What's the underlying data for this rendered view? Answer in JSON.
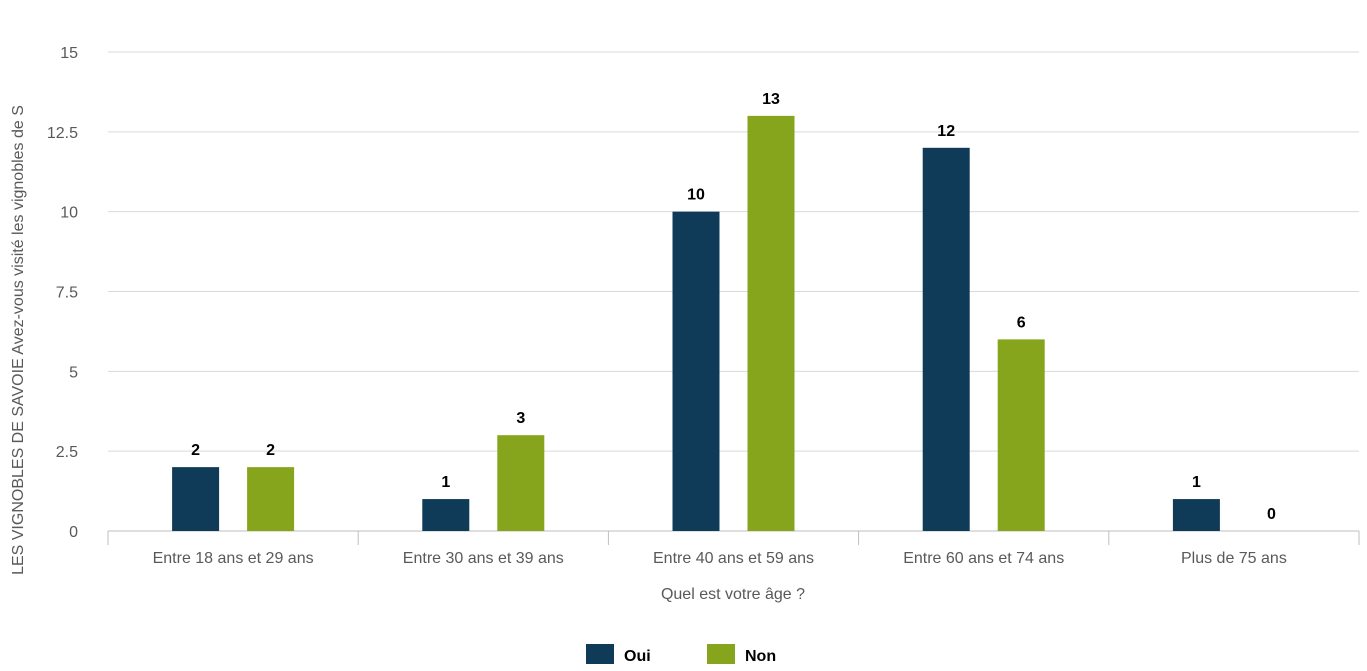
{
  "chart_data": {
    "type": "bar",
    "title": "",
    "xlabel": "Quel est votre âge ?",
    "ylabel": "LES VIGNOBLES DE SAVOIE Avez-vous visité les vignobles de S",
    "categories": [
      "Entre 18 ans et 29 ans",
      "Entre 30 ans et 39 ans",
      "Entre 40 ans et 59 ans",
      "Entre 60 ans et 74 ans",
      "Plus de 75 ans"
    ],
    "series": [
      {
        "name": "Oui",
        "values": [
          2,
          1,
          10,
          12,
          1
        ],
        "color": "#0f3b59"
      },
      {
        "name": "Non",
        "values": [
          2,
          3,
          13,
          6,
          0
        ],
        "color": "#86a51c"
      }
    ],
    "ylim": [
      0,
      15
    ],
    "yticks": [
      "0",
      "2.5",
      "5",
      "7.5",
      "10",
      "12.5",
      "15"
    ],
    "grid": true,
    "legend_position": "bottom"
  }
}
